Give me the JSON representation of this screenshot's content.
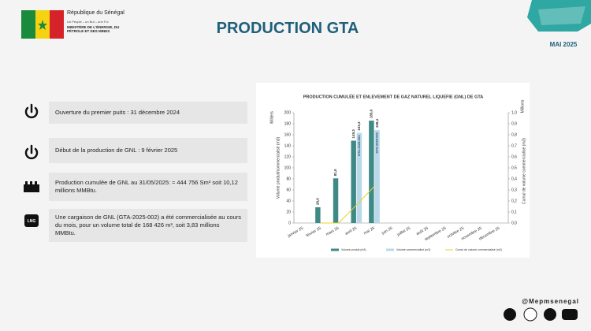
{
  "header": {
    "country": "République du Sénégal",
    "motto": "Un Peuple – un But – une Foi",
    "ministry": "MINISTÈRE DE L'ÉNERGIE, DU PÉTROLE ET DES MINES",
    "title": "PRODUCTION GTA",
    "date": "MAI 2025"
  },
  "items": [
    {
      "text": "Ouverture du premier puits : 31 décembre 2024"
    },
    {
      "text": "Début de la production de GNL : 9 février 2025"
    },
    {
      "text": "Production cumulée de GNL au 31/05/2025: ≈ 444 756 Sm³ soit 10,12 millions MMBtu."
    },
    {
      "icon_label": "LNG",
      "text": "Une cargaison de GNL (GTA-2025-002) a été commercialisée au cours du mois, pour un volume total de 168 426 m³, soit 3,83 millions MMBtu."
    }
  ],
  "chart_data": {
    "type": "bar",
    "title": "PRODUCTION CUMULÉE ET ENLEVEMENT DE GAZ NATUREL LIQUEFIE (GNL) DE GTA",
    "y_unit": "Milliers",
    "y2_unit": "Millions",
    "y_label": "Volume produit/commercialisé (m3)",
    "y2_label": "Cumul de volume commercialisé (m3)",
    "categories": [
      "janvier 25",
      "février 25",
      "mars 25",
      "avril 25",
      "mai 25",
      "juin 25",
      "juillet 25",
      "août 25",
      "septembre 25",
      "octobre 25",
      "novembre 25",
      "décembre 25"
    ],
    "series": [
      {
        "name": "Volume produit (m3)",
        "color": "#3f8a86",
        "values": [
          null,
          28.6,
          81.0,
          149.3,
          185.6,
          null,
          null,
          null,
          null,
          null,
          null,
          null
        ],
        "value_labels": [
          null,
          "28,6",
          "81,0",
          "149,3",
          "185,6",
          null,
          null,
          null,
          null,
          null,
          null,
          null
        ]
      },
      {
        "name": "Volume commercialisé (m3)",
        "color": "#b9d9ea",
        "values": [
          null,
          null,
          null,
          163.3,
          168.4,
          null,
          null,
          null,
          null,
          null,
          null,
          null
        ],
        "value_labels": [
          null,
          null,
          null,
          "163,3",
          "168,4",
          null,
          null,
          null,
          null,
          null,
          null,
          null
        ]
      },
      {
        "name": "Cumul de volume commercialisé (m3)",
        "type": "line",
        "axis": "y2",
        "color": "#e8d42a",
        "values": [
          null,
          0,
          0,
          0.163,
          0.332,
          null,
          null,
          null,
          null,
          null,
          null,
          null
        ]
      }
    ],
    "annotations": [
      "GTA-2025-001",
      "GTA-2025-002"
    ],
    "ylim": [
      0,
      200
    ],
    "yticks": [
      0,
      20,
      40,
      60,
      80,
      100,
      120,
      140,
      160,
      180,
      200
    ],
    "y2lim": [
      0,
      1.0
    ],
    "y2ticks": [
      {
        "value": 0,
        "label": "0,0"
      },
      {
        "value": 0.1,
        "label": "0,1"
      },
      {
        "value": 0.2,
        "label": "0,2"
      },
      {
        "value": 0.3,
        "label": "0,3"
      },
      {
        "value": 0.4,
        "label": "0,4"
      },
      {
        "value": 0.5,
        "label": "0,5"
      },
      {
        "value": 0.6,
        "label": "0,6"
      },
      {
        "value": 0.7,
        "label": "0,7"
      },
      {
        "value": 0.8,
        "label": "0,8"
      },
      {
        "value": 0.9,
        "label": "0,9"
      },
      {
        "value": 1.0,
        "label": "1,0"
      }
    ],
    "legend": "bottom"
  },
  "footer": {
    "handle": "@Mepmsenegal"
  }
}
